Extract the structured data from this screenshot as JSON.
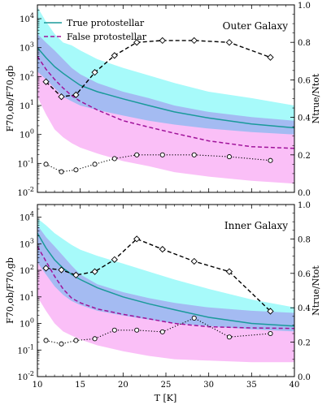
{
  "chart_data": [
    {
      "type": "line",
      "panel_title": "Outer Galaxy",
      "xlabel": "T [K]",
      "ylabel_left": "F70,ob/F70,gb",
      "ylabel_right": "Ntrue/Ntot",
      "xlim": [
        10,
        40
      ],
      "ylim_left": [
        0.01,
        30000
      ],
      "yscale_left": "log",
      "ylim_right": [
        0.0,
        1.0
      ],
      "xticks": [
        10,
        15,
        20,
        25,
        30,
        35,
        40
      ],
      "yticks_left": [
        "10^-2",
        "10^-1",
        "10^0",
        "10^1",
        "10^2",
        "10^3",
        "10^4"
      ],
      "yticks_right": [
        "0.0",
        "0.2",
        "0.4",
        "0.6",
        "0.8",
        "1.0"
      ],
      "legend": {
        "position": "top-left",
        "entries": [
          "True protostellar",
          "False protostellar"
        ]
      },
      "series": [
        {
          "name": "True protostellar",
          "color": "#1a9a9a",
          "style": "solid",
          "axis": "left",
          "x": [
            10,
            11,
            12,
            13,
            14,
            15,
            17,
            20,
            23,
            26,
            30,
            35,
            40
          ],
          "y": [
            1000,
            450,
            220,
            130,
            80,
            50,
            30,
            17,
            10,
            6,
            3.7,
            2.3,
            1.7
          ]
        },
        {
          "name": "False protostellar",
          "color": "#a0129a",
          "style": "dashed",
          "axis": "left",
          "x": [
            10,
            11,
            12,
            13,
            14,
            15,
            17,
            20,
            23,
            26,
            30,
            35,
            40
          ],
          "y": [
            500,
            180,
            80,
            40,
            22,
            14,
            7,
            3,
            1.8,
            1.1,
            0.6,
            0.38,
            0.33
          ]
        },
        {
          "band": "True protostellar range",
          "color": "#5ef5f5",
          "x": [
            10,
            11,
            12,
            13,
            14,
            15,
            17,
            20,
            23,
            26,
            30,
            35,
            40
          ],
          "lower": [
            150,
            80,
            40,
            20,
            14,
            10,
            7,
            4.5,
            3,
            2.2,
            1.6,
            1.2,
            1.0
          ],
          "upper": [
            25000,
            8000,
            3000,
            1500,
            1200,
            800,
            400,
            200,
            110,
            60,
            30,
            18,
            10
          ]
        },
        {
          "band": "False protostellar range",
          "color": "#f58af0",
          "x": [
            10,
            11,
            12,
            13,
            14,
            15,
            17,
            20,
            23,
            26,
            30,
            35,
            40
          ],
          "lower": [
            20,
            5,
            1.5,
            0.8,
            0.5,
            0.35,
            0.22,
            0.12,
            0.08,
            0.05,
            0.035,
            0.025,
            0.02
          ],
          "upper": [
            3000,
            1500,
            800,
            400,
            200,
            120,
            60,
            30,
            18,
            10,
            6,
            4,
            3
          ]
        },
        {
          "name": "Ntrue/Ntot (dashed)",
          "color": "#000000",
          "style": "dashed",
          "axis": "right",
          "marker": "diamond",
          "x": [
            11,
            12.8,
            14.5,
            16.7,
            19,
            21.6,
            24.6,
            28.3,
            32.4,
            37.2
          ],
          "y": [
            0.59,
            0.51,
            0.52,
            0.64,
            0.73,
            0.8,
            0.81,
            0.81,
            0.8,
            0.72
          ]
        },
        {
          "name": "Ntrue/Ntot (dotted)",
          "color": "#000000",
          "style": "dotted",
          "axis": "right",
          "marker": "circle",
          "x": [
            11,
            12.8,
            14.5,
            16.7,
            19,
            21.6,
            24.6,
            28.3,
            32.4,
            37.2
          ],
          "y": [
            0.15,
            0.11,
            0.12,
            0.15,
            0.18,
            0.2,
            0.2,
            0.2,
            0.19,
            0.17
          ]
        }
      ]
    },
    {
      "type": "line",
      "panel_title": "Inner Galaxy",
      "xlabel": "T [K]",
      "ylabel_left": "F70,ob/F70,gb",
      "ylabel_right": "Ntrue/Ntot",
      "xlim": [
        10,
        40
      ],
      "ylim_left": [
        0.01,
        30000
      ],
      "yscale_left": "log",
      "ylim_right": [
        0.0,
        1.0
      ],
      "xticks": [
        10,
        15,
        20,
        25,
        30,
        35,
        40
      ],
      "yticks_left": [
        "10^-2",
        "10^-1",
        "10^0",
        "10^1",
        "10^2",
        "10^3",
        "10^4"
      ],
      "yticks_right": [
        "0.0",
        "0.2",
        "0.4",
        "0.6",
        "0.8",
        "1.0"
      ],
      "series": [
        {
          "name": "True protostellar",
          "color": "#1a9a9a",
          "style": "solid",
          "axis": "left",
          "x": [
            10,
            11,
            12,
            13,
            14,
            15,
            17,
            20,
            23,
            26,
            30,
            35,
            40
          ],
          "y": [
            2500,
            700,
            250,
            120,
            70,
            45,
            22,
            10,
            5.5,
            3.3,
            1.7,
            1.0,
            0.8
          ]
        },
        {
          "name": "False protostellar",
          "color": "#a0129a",
          "style": "dashed",
          "axis": "left",
          "x": [
            10,
            11,
            12,
            13,
            14,
            15,
            17,
            20,
            23,
            26,
            30,
            35,
            40
          ],
          "y": [
            800,
            220,
            60,
            20,
            9,
            6,
            3.5,
            2.2,
            1.5,
            1.0,
            0.75,
            0.68,
            0.65
          ]
        },
        {
          "band": "True protostellar range",
          "color": "#5ef5f5",
          "x": [
            10,
            11,
            12,
            13,
            14,
            15,
            17,
            20,
            23,
            26,
            30,
            35,
            40
          ],
          "lower": [
            200,
            70,
            25,
            12,
            7,
            5,
            3,
            2,
            1.4,
            1.0,
            0.8,
            0.6,
            0.5
          ],
          "upper": [
            9000,
            5000,
            2500,
            1500,
            900,
            600,
            350,
            180,
            90,
            45,
            20,
            8,
            4
          ]
        },
        {
          "band": "False protostellar range",
          "color": "#f58af0",
          "x": [
            10,
            11,
            12,
            13,
            14,
            15,
            17,
            20,
            23,
            26,
            30,
            35,
            40
          ],
          "lower": [
            10,
            3,
            1,
            0.5,
            0.35,
            0.25,
            0.15,
            0.09,
            0.06,
            0.045,
            0.04,
            0.035,
            0.035
          ],
          "upper": [
            5000,
            1800,
            800,
            350,
            150,
            70,
            30,
            15,
            9,
            6,
            4,
            3,
            2.5
          ]
        },
        {
          "name": "Ntrue/Ntot (dashed)",
          "color": "#000000",
          "style": "dashed",
          "axis": "right",
          "marker": "diamond",
          "x": [
            11,
            12.8,
            14.5,
            16.7,
            19,
            21.6,
            24.6,
            28.3,
            32.4,
            37.2
          ],
          "y": [
            0.63,
            0.62,
            0.59,
            0.61,
            0.68,
            0.8,
            0.74,
            0.67,
            0.61,
            0.38
          ]
        },
        {
          "name": "Ntrue/Ntot (dotted)",
          "color": "#000000",
          "style": "dotted",
          "axis": "right",
          "marker": "circle",
          "x": [
            11,
            12.8,
            14.5,
            16.7,
            19,
            21.6,
            24.6,
            28.3,
            32.4,
            37.2
          ],
          "y": [
            0.21,
            0.19,
            0.21,
            0.22,
            0.27,
            0.27,
            0.26,
            0.34,
            0.23,
            0.25
          ]
        }
      ]
    }
  ]
}
